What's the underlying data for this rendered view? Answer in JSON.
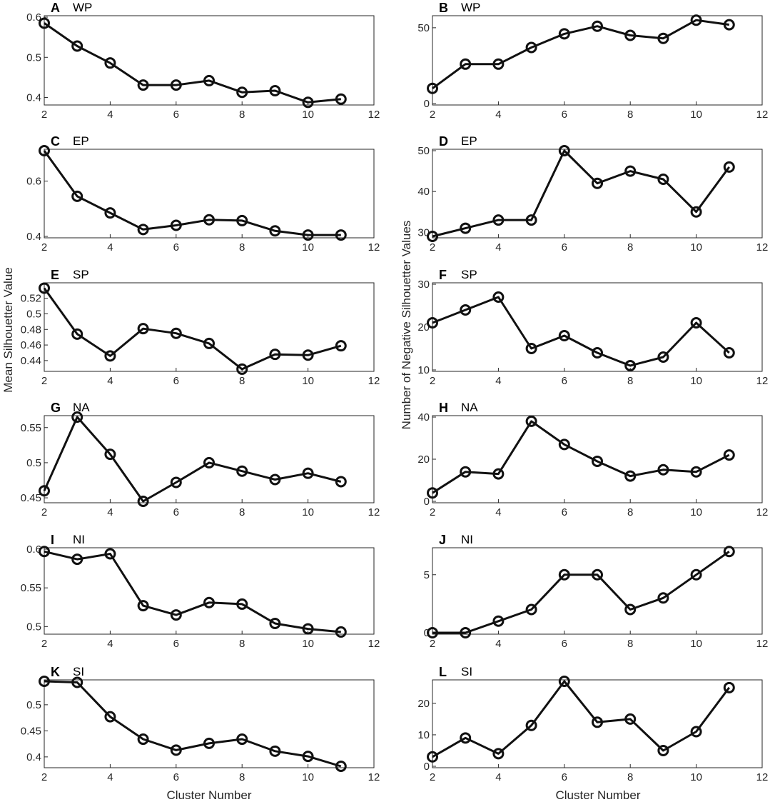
{
  "figure": {
    "ylabel_left": "Mean Silhouetter Value",
    "ylabel_right": "Number of Negative Silhouetter Values",
    "xlabel": "Cluster Number",
    "line_color": "#111111",
    "axis_color": "#262626"
  },
  "chart_data": [
    {
      "id": "A",
      "type": "line",
      "letter": "A",
      "region": "WP",
      "x": [
        2,
        3,
        4,
        5,
        6,
        7,
        8,
        9,
        10,
        11
      ],
      "values": [
        0.585,
        0.528,
        0.486,
        0.431,
        0.431,
        0.442,
        0.413,
        0.417,
        0.388,
        0.396
      ],
      "xlim": [
        2,
        12
      ],
      "ylim": [
        0.385,
        0.6
      ],
      "xticks": [
        2,
        4,
        6,
        8,
        10,
        12
      ],
      "yticks": [
        0.4,
        0.5,
        0.6
      ],
      "ytick_labels": [
        "0.4",
        "0.5",
        "0.6"
      ]
    },
    {
      "id": "B",
      "type": "line",
      "letter": "B",
      "region": "WP",
      "x": [
        2,
        3,
        4,
        5,
        6,
        7,
        8,
        9,
        10,
        11
      ],
      "values": [
        10,
        26,
        26,
        37,
        46,
        51,
        45,
        43,
        55,
        52
      ],
      "xlim": [
        2,
        12
      ],
      "ylim": [
        0,
        57
      ],
      "xticks": [
        2,
        4,
        6,
        8,
        10,
        12
      ],
      "yticks": [
        0,
        50
      ],
      "ytick_labels": [
        "0",
        "50"
      ]
    },
    {
      "id": "C",
      "type": "line",
      "letter": "C",
      "region": "EP",
      "x": [
        2,
        3,
        4,
        5,
        6,
        7,
        8,
        9,
        10,
        11
      ],
      "values": [
        0.71,
        0.545,
        0.485,
        0.425,
        0.44,
        0.46,
        0.457,
        0.42,
        0.405,
        0.405
      ],
      "xlim": [
        2,
        12
      ],
      "ylim": [
        0.4,
        0.71
      ],
      "xticks": [
        2,
        4,
        6,
        8,
        10,
        12
      ],
      "yticks": [
        0.4,
        0.6
      ],
      "ytick_labels": [
        "0.4",
        "0.6"
      ]
    },
    {
      "id": "D",
      "type": "line",
      "letter": "D",
      "region": "EP",
      "x": [
        2,
        3,
        4,
        5,
        6,
        7,
        8,
        9,
        10,
        11
      ],
      "values": [
        29,
        31,
        33,
        33,
        50,
        42,
        45,
        43,
        35,
        46
      ],
      "xlim": [
        2,
        12
      ],
      "ylim": [
        29,
        50
      ],
      "xticks": [
        2,
        4,
        6,
        8,
        10,
        12
      ],
      "yticks": [
        30,
        40,
        50
      ],
      "ytick_labels": [
        "30",
        "40",
        "50"
      ]
    },
    {
      "id": "E",
      "type": "line",
      "letter": "E",
      "region": "SP",
      "x": [
        2,
        3,
        4,
        5,
        6,
        7,
        8,
        9,
        10,
        11
      ],
      "values": [
        0.533,
        0.474,
        0.446,
        0.481,
        0.475,
        0.462,
        0.429,
        0.448,
        0.447,
        0.459
      ],
      "xlim": [
        2,
        12
      ],
      "ylim": [
        0.428,
        0.538
      ],
      "xticks": [
        2,
        4,
        6,
        8,
        10,
        12
      ],
      "yticks": [
        0.44,
        0.46,
        0.48,
        0.5,
        0.52
      ],
      "ytick_labels": [
        "0.44",
        "0.46",
        "0.48",
        "0.5",
        "0.52"
      ]
    },
    {
      "id": "F",
      "type": "line",
      "letter": "F",
      "region": "SP",
      "x": [
        2,
        3,
        4,
        5,
        6,
        7,
        8,
        9,
        10,
        11
      ],
      "values": [
        21,
        24,
        27,
        15,
        18,
        14,
        11,
        13,
        21,
        14
      ],
      "xlim": [
        2,
        12
      ],
      "ylim": [
        10,
        30
      ],
      "xticks": [
        2,
        4,
        6,
        8,
        10,
        12
      ],
      "yticks": [
        10,
        20,
        30
      ],
      "ytick_labels": [
        "10",
        "20",
        "30"
      ]
    },
    {
      "id": "G",
      "type": "line",
      "letter": "G",
      "region": "NA",
      "x": [
        2,
        3,
        4,
        5,
        6,
        7,
        8,
        9,
        10,
        11
      ],
      "values": [
        0.46,
        0.565,
        0.512,
        0.445,
        0.472,
        0.5,
        0.488,
        0.476,
        0.485,
        0.473
      ],
      "xlim": [
        2,
        12
      ],
      "ylim": [
        0.445,
        0.565
      ],
      "xticks": [
        2,
        4,
        6,
        8,
        10,
        12
      ],
      "yticks": [
        0.45,
        0.5,
        0.55
      ],
      "ytick_labels": [
        "0.45",
        "0.5",
        "0.55"
      ]
    },
    {
      "id": "H",
      "type": "line",
      "letter": "H",
      "region": "NA",
      "x": [
        2,
        3,
        4,
        5,
        6,
        7,
        8,
        9,
        10,
        11
      ],
      "values": [
        4,
        14,
        13,
        38,
        27,
        19,
        12,
        15,
        14,
        22
      ],
      "xlim": [
        2,
        12
      ],
      "ylim": [
        0,
        40
      ],
      "xticks": [
        2,
        4,
        6,
        8,
        10,
        12
      ],
      "yticks": [
        0,
        20,
        40
      ],
      "ytick_labels": [
        "0",
        "20",
        "40"
      ]
    },
    {
      "id": "I",
      "type": "line",
      "letter": "I",
      "region": "NI",
      "x": [
        2,
        3,
        4,
        5,
        6,
        7,
        8,
        9,
        10,
        11
      ],
      "values": [
        0.597,
        0.587,
        0.594,
        0.527,
        0.515,
        0.531,
        0.529,
        0.504,
        0.497,
        0.493
      ],
      "xlim": [
        2,
        12
      ],
      "ylim": [
        0.492,
        0.6
      ],
      "xticks": [
        2,
        4,
        6,
        8,
        10,
        12
      ],
      "yticks": [
        0.5,
        0.55,
        0.6
      ],
      "ytick_labels": [
        "0.5",
        "0.55",
        "0.6"
      ]
    },
    {
      "id": "J",
      "type": "line",
      "letter": "J",
      "region": "NI",
      "x": [
        2,
        3,
        4,
        5,
        6,
        7,
        8,
        9,
        10,
        11
      ],
      "values": [
        0,
        0,
        1,
        2,
        5,
        5,
        2,
        3,
        5,
        7
      ],
      "xlim": [
        2,
        12
      ],
      "ylim": [
        0,
        7.2
      ],
      "xticks": [
        2,
        4,
        6,
        8,
        10,
        12
      ],
      "yticks": [
        0,
        5
      ],
      "ytick_labels": [
        "0",
        "5"
      ]
    },
    {
      "id": "K",
      "type": "line",
      "letter": "K",
      "region": "SI",
      "x": [
        2,
        3,
        4,
        5,
        6,
        7,
        8,
        9,
        10,
        11
      ],
      "values": [
        0.545,
        0.543,
        0.477,
        0.434,
        0.413,
        0.426,
        0.434,
        0.411,
        0.401,
        0.382
      ],
      "xlim": [
        2,
        12
      ],
      "ylim": [
        0.382,
        0.545
      ],
      "xticks": [
        2,
        4,
        6,
        8,
        10,
        12
      ],
      "yticks": [
        0.4,
        0.45,
        0.5
      ],
      "ytick_labels": [
        "0.4",
        "0.45",
        "0.5"
      ]
    },
    {
      "id": "L",
      "type": "line",
      "letter": "L",
      "region": "SI",
      "x": [
        2,
        3,
        4,
        5,
        6,
        7,
        8,
        9,
        10,
        11
      ],
      "values": [
        3,
        9,
        4,
        13,
        27,
        14,
        15,
        5,
        11,
        25
      ],
      "xlim": [
        2,
        12
      ],
      "ylim": [
        0,
        27
      ],
      "xticks": [
        2,
        4,
        6,
        8,
        10,
        12
      ],
      "yticks": [
        0,
        10,
        20
      ],
      "ytick_labels": [
        "0",
        "10",
        "20"
      ]
    }
  ]
}
